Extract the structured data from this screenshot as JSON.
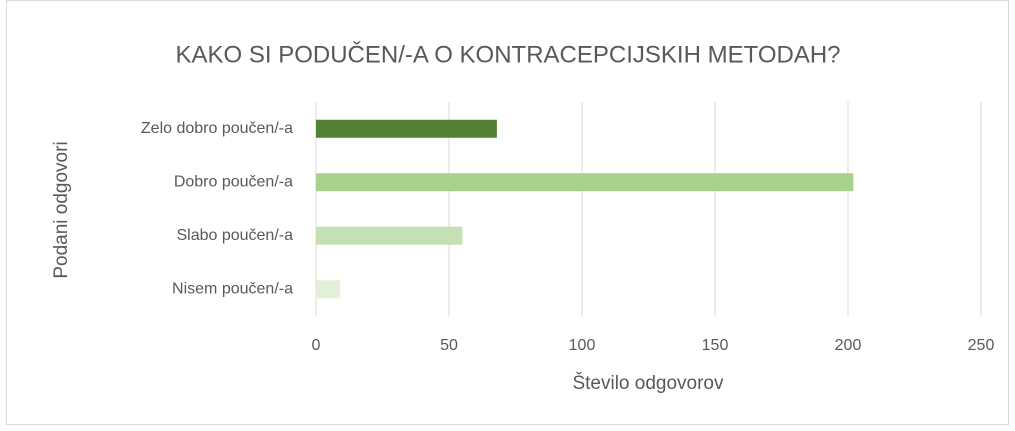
{
  "chart_data": {
    "type": "barh",
    "title": "KAKO SI PODUČEN/-A O KONTRACEPCIJSKIH METODAH?",
    "xlabel": "Število odgovorov",
    "ylabel": "Podani odgovori",
    "categories": [
      "Zelo dobro poučen/-a",
      "Dobro poučen/-a",
      "Slabo poučen/-a",
      "Nisem poučen/-a"
    ],
    "values": [
      68,
      202,
      55,
      9
    ],
    "colors": [
      "#548235",
      "#a9d18e",
      "#c5e0b4",
      "#e2f0d9"
    ],
    "xlim": [
      0,
      250
    ],
    "xticks": [
      0,
      50,
      100,
      150,
      200,
      250
    ],
    "grid": true
  }
}
